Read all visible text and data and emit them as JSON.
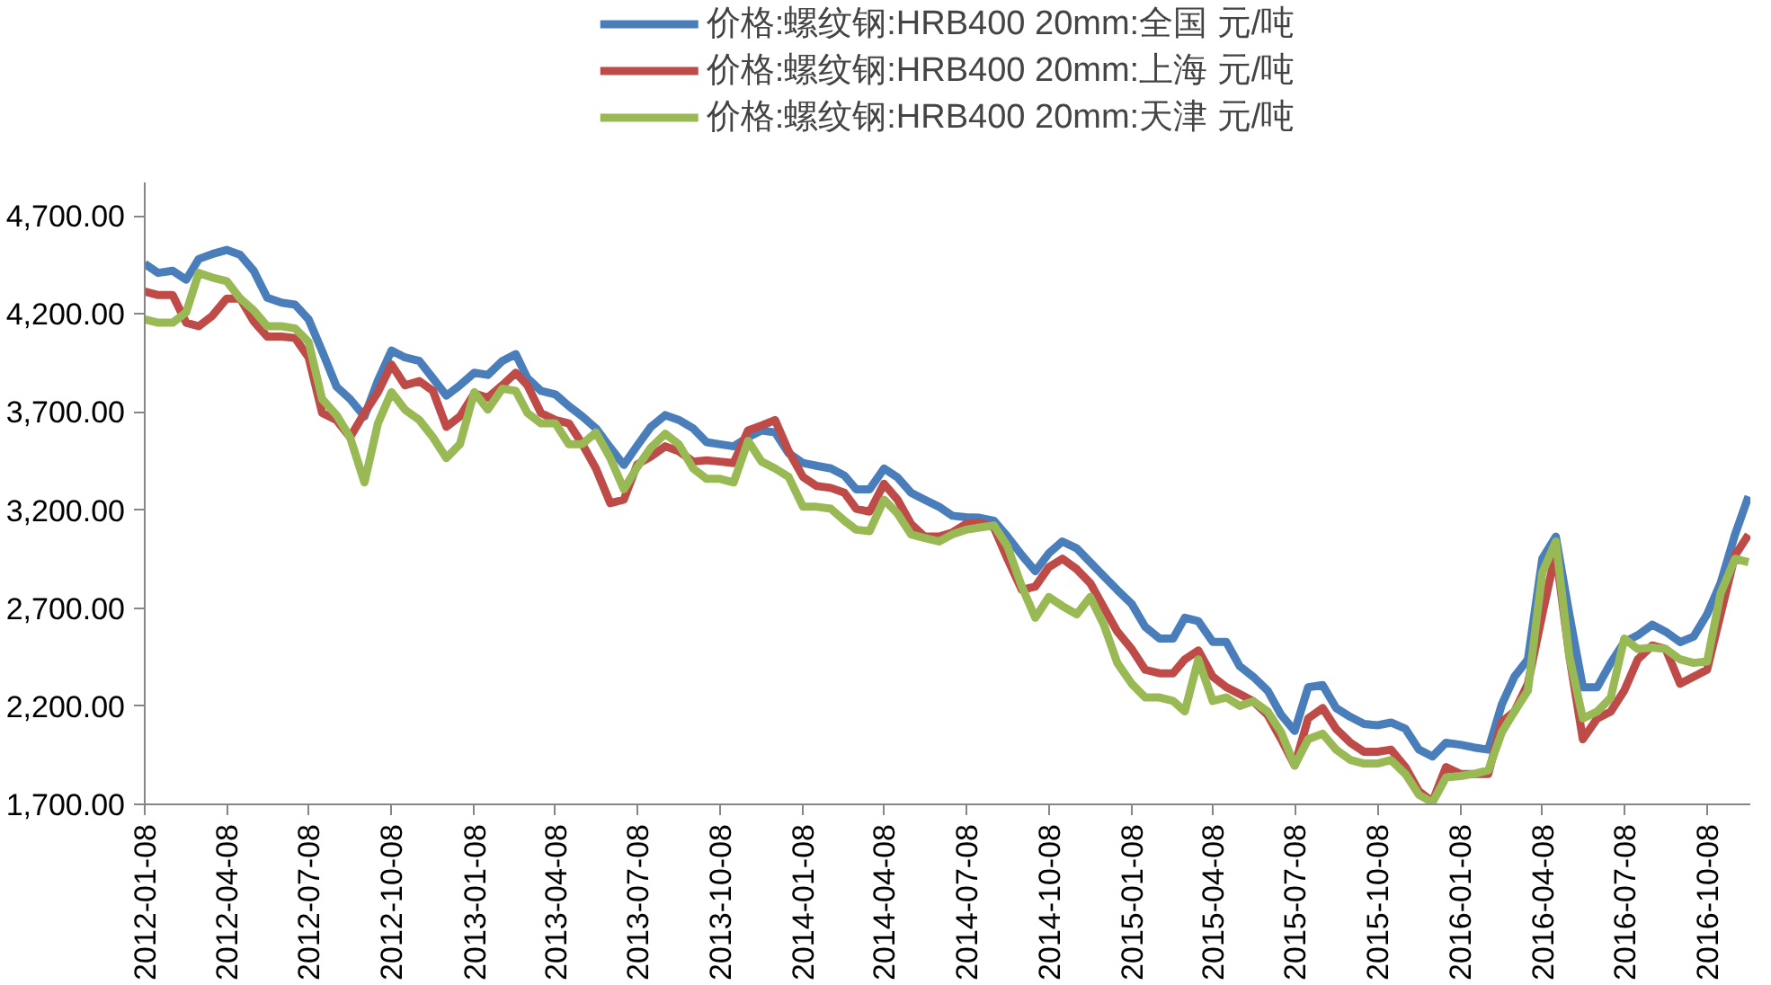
{
  "chart_data": {
    "type": "line",
    "legend": "top",
    "grid": false,
    "marker": "none",
    "line_style": "solid",
    "xlim": [
      "2012-01-08",
      "2016-11-25"
    ],
    "xticks": [
      {
        "value": "2012-01-08",
        "label": "2012-01-08"
      },
      {
        "value": "2012-04-08",
        "label": "2012-04-08"
      },
      {
        "value": "2012-07-08",
        "label": "2012-07-08"
      },
      {
        "value": "2012-10-08",
        "label": "2012-10-08"
      },
      {
        "value": "2013-01-08",
        "label": "2013-01-08"
      },
      {
        "value": "2013-04-08",
        "label": "2013-04-08"
      },
      {
        "value": "2013-07-08",
        "label": "2013-07-08"
      },
      {
        "value": "2013-10-08",
        "label": "2013-10-08"
      },
      {
        "value": "2014-01-08",
        "label": "2014-01-08"
      },
      {
        "value": "2014-04-08",
        "label": "2014-04-08"
      },
      {
        "value": "2014-07-08",
        "label": "2014-07-08"
      },
      {
        "value": "2014-10-08",
        "label": "2014-10-08"
      },
      {
        "value": "2015-01-08",
        "label": "2015-01-08"
      },
      {
        "value": "2015-04-08",
        "label": "2015-04-08"
      },
      {
        "value": "2015-07-08",
        "label": "2015-07-08"
      },
      {
        "value": "2015-10-08",
        "label": "2015-10-08"
      },
      {
        "value": "2016-01-08",
        "label": "2016-01-08"
      },
      {
        "value": "2016-04-08",
        "label": "2016-04-08"
      },
      {
        "value": "2016-07-08",
        "label": "2016-07-08"
      },
      {
        "value": "2016-10-08",
        "label": "2016-10-08"
      }
    ],
    "ylim": [
      1700,
      4870
    ],
    "yticks": [
      {
        "value": 1700,
        "label": "1,700.00"
      },
      {
        "value": 2200,
        "label": "2,200.00"
      },
      {
        "value": 2700,
        "label": "2,700.00"
      },
      {
        "value": 3200,
        "label": "3,200.00"
      },
      {
        "value": 3700,
        "label": "3,700.00"
      },
      {
        "value": 4200,
        "label": "4,200.00"
      },
      {
        "value": 4700,
        "label": "4,700.00"
      }
    ],
    "x": [
      "2012-01-08",
      "2012-01-23",
      "2012-02-08",
      "2012-02-23",
      "2012-03-08",
      "2012-03-23",
      "2012-04-08",
      "2012-04-23",
      "2012-05-08",
      "2012-05-23",
      "2012-06-08",
      "2012-06-23",
      "2012-07-08",
      "2012-07-23",
      "2012-08-08",
      "2012-08-23",
      "2012-09-08",
      "2012-09-23",
      "2012-10-08",
      "2012-10-23",
      "2012-11-08",
      "2012-11-23",
      "2012-12-08",
      "2012-12-23",
      "2013-01-08",
      "2013-01-23",
      "2013-02-08",
      "2013-02-23",
      "2013-03-08",
      "2013-03-23",
      "2013-04-08",
      "2013-04-23",
      "2013-05-08",
      "2013-05-23",
      "2013-06-08",
      "2013-06-23",
      "2013-07-08",
      "2013-07-23",
      "2013-08-08",
      "2013-08-23",
      "2013-09-08",
      "2013-09-23",
      "2013-10-08",
      "2013-10-23",
      "2013-11-08",
      "2013-11-23",
      "2013-12-08",
      "2013-12-23",
      "2014-01-08",
      "2014-01-23",
      "2014-02-08",
      "2014-02-23",
      "2014-03-08",
      "2014-03-23",
      "2014-04-08",
      "2014-04-23",
      "2014-05-08",
      "2014-05-23",
      "2014-06-08",
      "2014-06-23",
      "2014-07-08",
      "2014-07-23",
      "2014-08-08",
      "2014-08-23",
      "2014-09-08",
      "2014-09-23",
      "2014-10-08",
      "2014-10-23",
      "2014-11-08",
      "2014-11-23",
      "2014-12-08",
      "2014-12-23",
      "2015-01-08",
      "2015-01-23",
      "2015-02-08",
      "2015-02-23",
      "2015-03-08",
      "2015-03-23",
      "2015-04-08",
      "2015-04-23",
      "2015-05-08",
      "2015-05-23",
      "2015-06-08",
      "2015-06-23",
      "2015-07-08",
      "2015-07-23",
      "2015-08-08",
      "2015-08-23",
      "2015-09-08",
      "2015-09-23",
      "2015-10-08",
      "2015-10-23",
      "2015-11-08",
      "2015-11-23",
      "2015-12-08",
      "2015-12-23",
      "2016-01-08",
      "2016-01-23",
      "2016-02-08",
      "2016-02-23",
      "2016-03-08",
      "2016-03-23",
      "2016-04-08",
      "2016-04-23",
      "2016-05-08",
      "2016-05-23",
      "2016-06-08",
      "2016-06-23",
      "2016-07-08",
      "2016-07-23",
      "2016-08-08",
      "2016-08-23",
      "2016-09-08",
      "2016-09-23",
      "2016-10-08",
      "2016-10-23",
      "2016-11-08",
      "2016-11-23"
    ],
    "series": [
      {
        "name": "价格:螺纹钢:HRB400 20mm:全国 元/吨",
        "color": "#4a7ebb",
        "values": [
          4455,
          4409,
          4420,
          4374,
          4480,
          4505,
          4526,
          4501,
          4420,
          4282,
          4257,
          4247,
          4172,
          4010,
          3829,
          3766,
          3677,
          3861,
          4013,
          3978,
          3960,
          3872,
          3783,
          3836,
          3900,
          3889,
          3960,
          3995,
          3872,
          3808,
          3790,
          3730,
          3677,
          3617,
          3518,
          3430,
          3529,
          3624,
          3684,
          3660,
          3617,
          3546,
          3535,
          3525,
          3571,
          3606,
          3596,
          3490,
          3440,
          3426,
          3412,
          3376,
          3306,
          3306,
          3412,
          3366,
          3288,
          3253,
          3217,
          3171,
          3164,
          3161,
          3146,
          3065,
          2970,
          2888,
          2980,
          3040,
          3005,
          2934,
          2863,
          2793,
          2722,
          2605,
          2545,
          2545,
          2651,
          2634,
          2528,
          2528,
          2404,
          2350,
          2280,
          2156,
          2074,
          2297,
          2308,
          2191,
          2145,
          2110,
          2103,
          2117,
          2085,
          1979,
          1944,
          2014,
          2004,
          1990,
          1979,
          2209,
          2350,
          2439,
          2952,
          3065,
          2669,
          2297,
          2297,
          2421,
          2527,
          2562,
          2616,
          2580,
          2527,
          2555,
          2669,
          2828,
          3075,
          3270
        ]
      },
      {
        "name": "价格:螺纹钢:HRB400 20mm:上海 元/吨",
        "color": "#be4b48",
        "values": [
          4314,
          4296,
          4296,
          4155,
          4137,
          4190,
          4278,
          4278,
          4162,
          4084,
          4084,
          4077,
          3978,
          3695,
          3659,
          3571,
          3695,
          3801,
          3942,
          3836,
          3857,
          3808,
          3624,
          3677,
          3794,
          3773,
          3836,
          3900,
          3836,
          3695,
          3659,
          3642,
          3536,
          3412,
          3235,
          3253,
          3433,
          3472,
          3525,
          3500,
          3447,
          3454,
          3447,
          3440,
          3606,
          3631,
          3659,
          3500,
          3369,
          3323,
          3313,
          3288,
          3207,
          3192,
          3334,
          3253,
          3129,
          3065,
          3065,
          3086,
          3129,
          3136,
          3111,
          2952,
          2793,
          2810,
          2909,
          2952,
          2899,
          2828,
          2704,
          2581,
          2492,
          2386,
          2368,
          2368,
          2439,
          2485,
          2351,
          2298,
          2262,
          2226,
          2156,
          2032,
          1898,
          2138,
          2191,
          2085,
          2014,
          1968,
          1968,
          1979,
          1890,
          1767,
          1714,
          1890,
          1855,
          1855,
          1855,
          2120,
          2173,
          2315,
          2669,
          2987,
          2456,
          2032,
          2138,
          2173,
          2280,
          2439,
          2510,
          2492,
          2315,
          2350,
          2386,
          2669,
          2969,
          3075
        ]
      },
      {
        "name": "价格:螺纹钢:HRB400 20mm:天津 元/吨",
        "color": "#98b954",
        "values": [
          4172,
          4155,
          4155,
          4208,
          4409,
          4385,
          4367,
          4278,
          4218,
          4137,
          4137,
          4126,
          4056,
          3766,
          3684,
          3571,
          3341,
          3642,
          3801,
          3712,
          3659,
          3571,
          3465,
          3536,
          3801,
          3712,
          3819,
          3808,
          3695,
          3642,
          3642,
          3536,
          3536,
          3596,
          3465,
          3306,
          3419,
          3518,
          3589,
          3536,
          3412,
          3359,
          3359,
          3341,
          3553,
          3447,
          3412,
          3369,
          3217,
          3217,
          3207,
          3146,
          3100,
          3093,
          3253,
          3182,
          3076,
          3058,
          3040,
          3076,
          3100,
          3111,
          3122,
          3016,
          2810,
          2651,
          2757,
          2711,
          2669,
          2757,
          2616,
          2421,
          2315,
          2245,
          2245,
          2227,
          2174,
          2439,
          2227,
          2245,
          2202,
          2226,
          2173,
          2067,
          1898,
          2032,
          2060,
          1979,
          1926,
          1908,
          1908,
          1926,
          1855,
          1749,
          1710,
          1837,
          1844,
          1855,
          1873,
          2067,
          2173,
          2280,
          2881,
          3040,
          2456,
          2138,
          2173,
          2244,
          2545,
          2492,
          2499,
          2492,
          2439,
          2421,
          2428,
          2775,
          2952,
          2934
        ]
      }
    ]
  }
}
